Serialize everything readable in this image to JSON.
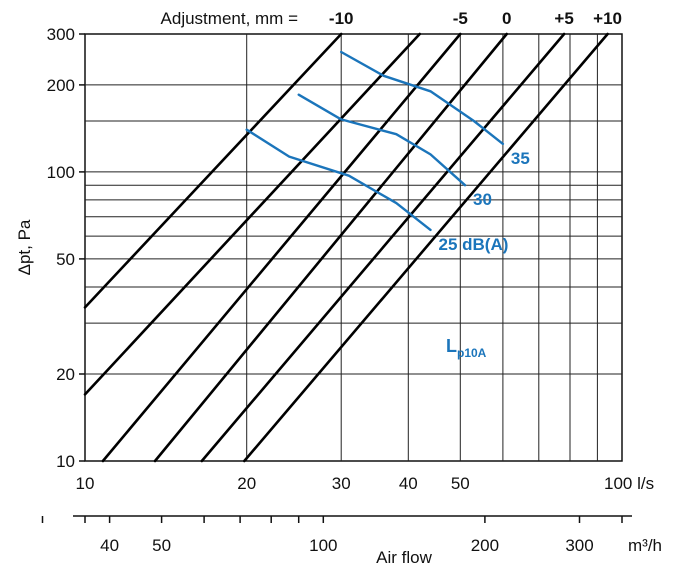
{
  "chart_data": {
    "type": "line",
    "x_scale": "log",
    "y_scale": "log",
    "xlim": [
      10,
      100
    ],
    "ylim": [
      10,
      300
    ],
    "x_ticks": [
      {
        "value": 10,
        "label": "10"
      },
      {
        "value": 20,
        "label": "20"
      },
      {
        "value": 30,
        "label": "30"
      },
      {
        "value": 40,
        "label": "40"
      },
      {
        "value": 50,
        "label": "50"
      },
      {
        "value": 100,
        "label": "100 l/s"
      }
    ],
    "x_minor_grid": [
      60,
      70,
      80,
      90
    ],
    "y_ticks": [
      {
        "value": 10,
        "label": "10"
      },
      {
        "value": 20,
        "label": "20"
      },
      {
        "value": 50,
        "label": "50"
      },
      {
        "value": 100,
        "label": "100"
      },
      {
        "value": 200,
        "label": "200"
      },
      {
        "value": 300,
        "label": "300"
      }
    ],
    "y_minor_grid": [
      30,
      40,
      60,
      70,
      80,
      90,
      150
    ],
    "secondary_x_ticks": [
      {
        "value": 40,
        "label": "40"
      },
      {
        "value": 50,
        "label": "50"
      },
      {
        "value": 100,
        "label": "100"
      },
      {
        "value": 200,
        "label": "200"
      },
      {
        "value": 300,
        "label": "300"
      },
      {
        "value": 360,
        "label": "m³/h"
      }
    ],
    "secondary_x_minor": [
      60,
      70,
      80,
      90
    ],
    "secondary_x_factor": 3.6,
    "xlabel": "Air flow",
    "ylabel": "Δpt, Pa",
    "adjustment_title": "Adjustment, mm =",
    "adjustment_lines": [
      {
        "name": "-10",
        "points": [
          [
            10,
            34
          ],
          [
            30,
            300
          ]
        ]
      },
      {
        "name": "",
        "points": [
          [
            10,
            17
          ],
          [
            42,
            300
          ]
        ]
      },
      {
        "name": "-5",
        "points": [
          [
            10.8,
            10
          ],
          [
            50,
            300
          ]
        ]
      },
      {
        "name": "0",
        "points": [
          [
            13.5,
            10
          ],
          [
            61,
            300
          ]
        ]
      },
      {
        "name": "+5",
        "points": [
          [
            16.5,
            10
          ],
          [
            78,
            300
          ]
        ]
      },
      {
        "name": "+10",
        "points": [
          [
            19.8,
            10
          ],
          [
            94,
            300
          ]
        ]
      }
    ],
    "noise_curves": [
      {
        "name": "35",
        "points": [
          [
            30,
            260
          ],
          [
            36,
            215
          ],
          [
            44,
            190
          ],
          [
            53,
            150
          ],
          [
            60,
            125
          ]
        ]
      },
      {
        "name": "30",
        "points": [
          [
            25,
            185
          ],
          [
            30,
            152
          ],
          [
            38,
            135
          ],
          [
            44,
            115
          ],
          [
            51,
            90
          ]
        ]
      },
      {
        "name": "25 dB(A)",
        "points": [
          [
            20,
            140
          ],
          [
            24,
            113
          ],
          [
            31,
            97
          ],
          [
            38,
            78
          ],
          [
            44,
            63
          ]
        ]
      }
    ],
    "noise_title": "Lp10A",
    "series_color": "#1b75bb"
  }
}
